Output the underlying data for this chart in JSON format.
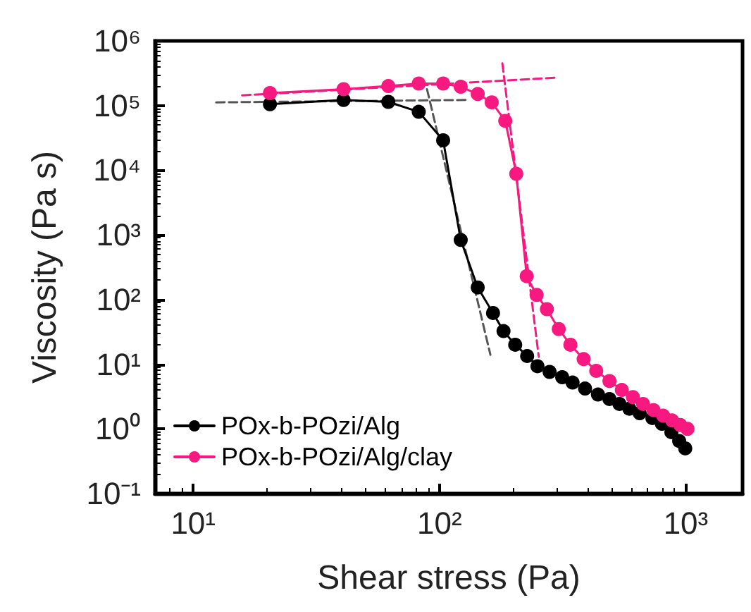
{
  "chart_data": {
    "type": "line",
    "xlabel": "Shear stress (Pa)",
    "ylabel": "Viscosity (Pa s)",
    "log": "xy",
    "grid": false,
    "legend": "bottom left",
    "marker": "circle",
    "line_style": "solid",
    "xlim": [
      7,
      1700
    ],
    "xticks": [
      {
        "value": 10,
        "label": "10¹"
      },
      {
        "value": 100,
        "label": "10²"
      },
      {
        "value": 1000,
        "label": "10³"
      }
    ],
    "ylim": [
      0.1,
      1000000
    ],
    "yticks": [
      {
        "value": 0.1,
        "label": "10⁻¹"
      },
      {
        "value": 1,
        "label": "10⁰"
      },
      {
        "value": 10,
        "label": "10¹"
      },
      {
        "value": 100,
        "label": "10²"
      },
      {
        "value": 1000,
        "label": "10³"
      },
      {
        "value": 10000,
        "label": "10⁴"
      },
      {
        "value": 100000,
        "label": "10⁵"
      },
      {
        "value": 1000000,
        "label": "10⁶"
      }
    ],
    "series": [
      {
        "type": "line",
        "marker": "none",
        "line_style": "dashed",
        "color": "#555555",
        "x": [
          12.4,
          129
        ],
        "values": [
          112000,
          122000
        ]
      },
      {
        "type": "line",
        "marker": "none",
        "line_style": "dashed",
        "color": "#555555",
        "x": [
          89,
          161
        ],
        "values": [
          179000,
          14
        ]
      },
      {
        "type": "line",
        "marker": "none",
        "line_style": "dashed",
        "color": "#f7197f",
        "x": [
          15.8,
          298
        ],
        "values": [
          144000,
          270000
        ]
      },
      {
        "type": "line",
        "marker": "none",
        "line_style": "dashed",
        "color": "#f7197f",
        "x": [
          180,
          253
        ],
        "values": [
          450000,
          13
        ]
      },
      {
        "name": "POx-b-POzi/Alg",
        "color": "#000000",
        "x": [
          20.5,
          40.8,
          62,
          82.4,
          103.5,
          122,
          143,
          165,
          182,
          203,
          227,
          250,
          280,
          315,
          347,
          390,
          440,
          490,
          538,
          590,
          650,
          732,
          800,
          874,
          940,
          995
        ],
        "values": [
          105000,
          122000,
          114000,
          80000,
          29000,
          835,
          154,
          62,
          32.5,
          20,
          13.4,
          9.3,
          7.6,
          6.3,
          5.2,
          4.2,
          3.4,
          2.9,
          2.43,
          2.05,
          1.75,
          1.47,
          1.2,
          0.89,
          0.65,
          0.5
        ]
      },
      {
        "name": "POx-b-POzi/Alg/clay",
        "color": "#f7197f",
        "x": [
          20.5,
          40.8,
          62,
          82.4,
          103.5,
          122,
          143,
          163,
          185,
          205,
          226,
          248,
          273,
          305,
          340,
          385,
          433,
          490,
          550,
          610,
          671,
          740,
          810,
          880,
          950,
          1016
        ],
        "values": [
          156000,
          179000,
          200000,
          219000,
          219000,
          195000,
          151000,
          112000,
          58000,
          8800,
          230,
          118,
          71,
          35,
          20,
          12,
          7.9,
          5.5,
          4.0,
          3.1,
          2.43,
          1.95,
          1.6,
          1.35,
          1.15,
          1.0
        ]
      }
    ]
  }
}
